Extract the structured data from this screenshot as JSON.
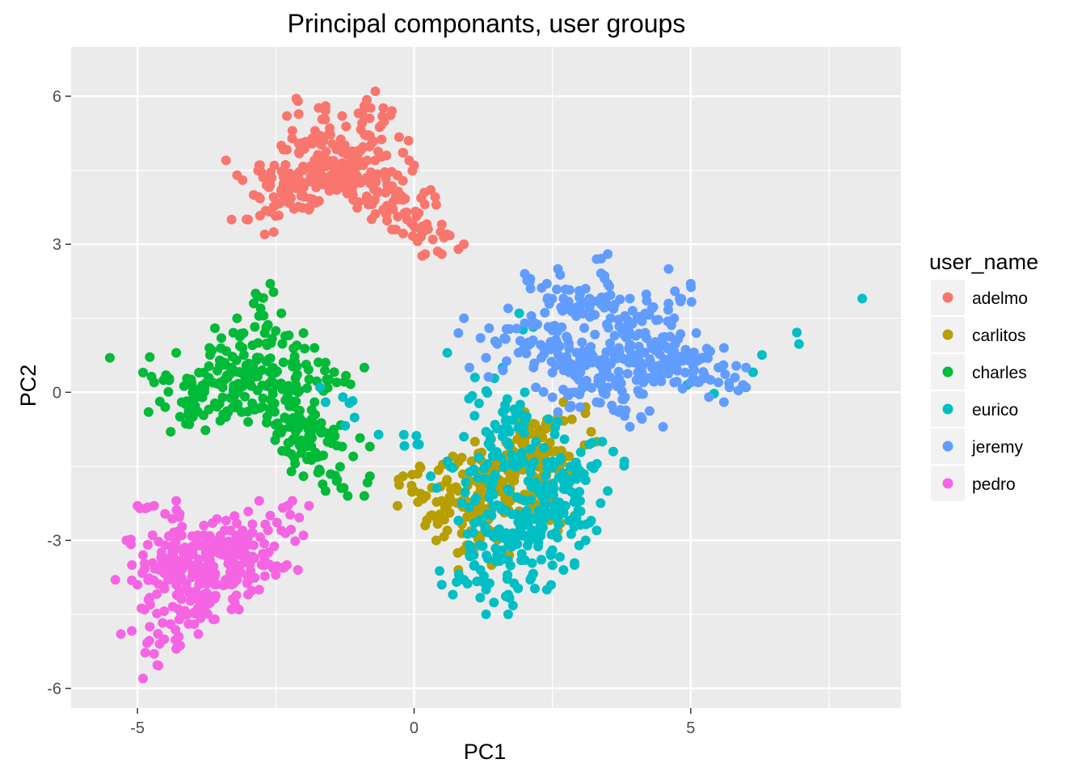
{
  "chart_data": {
    "type": "scatter",
    "title": "Principal componants, user groups",
    "xlabel": "PC1",
    "ylabel": "PC2",
    "xlim": [
      -6.2,
      8.8
    ],
    "ylim": [
      -6.4,
      7.0
    ],
    "x_ticks": [
      -5,
      0,
      5
    ],
    "x_tick_labels": [
      "-5",
      "0",
      "5"
    ],
    "y_ticks": [
      -6,
      -3,
      0,
      3,
      6
    ],
    "y_tick_labels": [
      "-6",
      "-3",
      "0",
      "3",
      "6"
    ],
    "grid": true,
    "legend": {
      "title": "user_name",
      "placement": "right"
    },
    "series": [
      {
        "name": "adelmo",
        "color": "#F8766D",
        "points": [
          [
            -1.2,
            4.6
          ],
          [
            -1.0,
            4.9
          ],
          [
            -0.8,
            5.2
          ],
          [
            -1.5,
            4.4
          ],
          [
            -0.6,
            5.4
          ],
          [
            -1.8,
            4.7
          ],
          [
            -2.0,
            4.5
          ],
          [
            -0.9,
            5.8
          ],
          [
            -0.7,
            6.1
          ],
          [
            -1.3,
            5.6
          ],
          [
            -2.2,
            5.3
          ],
          [
            -2.4,
            5.0
          ],
          [
            -2.6,
            4.2
          ],
          [
            -3.4,
            4.7
          ],
          [
            -3.2,
            4.4
          ],
          [
            -2.9,
            4.0
          ],
          [
            -2.5,
            3.8
          ],
          [
            -0.3,
            4.4
          ],
          [
            0.0,
            4.6
          ],
          [
            -0.2,
            3.9
          ],
          [
            -0.5,
            3.6
          ],
          [
            0.3,
            4.1
          ],
          [
            0.4,
            3.8
          ],
          [
            0.5,
            3.4
          ],
          [
            0.6,
            3.2
          ],
          [
            0.8,
            2.9
          ],
          [
            0.5,
            2.8
          ],
          [
            0.2,
            2.8
          ],
          [
            -1.6,
            5.8
          ],
          [
            -2.1,
            5.9
          ],
          [
            -2.3,
            5.6
          ],
          [
            -3.0,
            3.5
          ],
          [
            -3.3,
            3.5
          ],
          [
            -2.7,
            3.2
          ],
          [
            -1.9,
            3.7
          ],
          [
            -0.4,
            3.3
          ],
          [
            0.9,
            3.0
          ],
          [
            -1.1,
            3.9
          ],
          [
            -0.1,
            5.1
          ],
          [
            -1.4,
            4.1
          ],
          [
            -2.8,
            4.6
          ],
          [
            -1.7,
            5.2
          ],
          [
            -0.5,
            4.8
          ],
          [
            -2.4,
            4.1
          ],
          [
            -0.9,
            4.3
          ],
          [
            -0.4,
            5.7
          ],
          [
            -3.1,
            4.3
          ]
        ]
      },
      {
        "name": "carlitos",
        "color": "#B79F00",
        "points": [
          [
            0.3,
            -2.5
          ],
          [
            0.5,
            -2.2
          ],
          [
            0.8,
            -2.0
          ],
          [
            1.0,
            -2.4
          ],
          [
            1.3,
            -1.8
          ],
          [
            1.5,
            -1.5
          ],
          [
            1.8,
            -1.2
          ],
          [
            2.0,
            -1.0
          ],
          [
            2.3,
            -0.8
          ],
          [
            2.6,
            -0.5
          ],
          [
            2.8,
            -1.3
          ],
          [
            3.0,
            -1.6
          ],
          [
            3.2,
            -0.8
          ],
          [
            2.5,
            -1.9
          ],
          [
            2.2,
            -2.3
          ],
          [
            1.9,
            -2.6
          ],
          [
            1.6,
            -2.0
          ],
          [
            1.2,
            -2.9
          ],
          [
            0.9,
            -3.2
          ],
          [
            0.6,
            -2.8
          ],
          [
            0.4,
            -3.0
          ],
          [
            -0.3,
            -2.3
          ],
          [
            -0.2,
            -1.7
          ],
          [
            0.0,
            -2.0
          ],
          [
            0.1,
            -1.5
          ],
          [
            0.7,
            -1.3
          ],
          [
            1.1,
            -1.0
          ],
          [
            2.7,
            -0.2
          ],
          [
            3.1,
            -0.3
          ],
          [
            2.0,
            -0.4
          ],
          [
            2.6,
            -2.8
          ],
          [
            2.9,
            -2.5
          ],
          [
            3.3,
            -1.0
          ],
          [
            1.4,
            -3.5
          ],
          [
            0.8,
            -3.6
          ],
          [
            0.2,
            -2.7
          ],
          [
            1.7,
            -1.6
          ],
          [
            2.4,
            -1.1
          ]
        ]
      },
      {
        "name": "charles",
        "color": "#00BA38",
        "points": [
          [
            -3.3,
            0.5
          ],
          [
            -3.0,
            0.3
          ],
          [
            -2.8,
            0.7
          ],
          [
            -3.5,
            0.2
          ],
          [
            -3.1,
            0.9
          ],
          [
            -2.5,
            0.4
          ],
          [
            -2.2,
            0.6
          ],
          [
            -3.8,
            0.4
          ],
          [
            -4.0,
            0.1
          ],
          [
            -4.2,
            -0.2
          ],
          [
            -4.3,
            0.8
          ],
          [
            -3.6,
            1.3
          ],
          [
            -3.2,
            1.5
          ],
          [
            -2.7,
            1.2
          ],
          [
            -2.4,
            1.6
          ],
          [
            -2.0,
            1.2
          ],
          [
            -1.8,
            0.9
          ],
          [
            -1.6,
            0.6
          ],
          [
            -1.4,
            0.2
          ],
          [
            -1.8,
            -0.2
          ],
          [
            -2.6,
            -0.4
          ],
          [
            -3.0,
            -0.6
          ],
          [
            -3.4,
            -0.5
          ],
          [
            -4.0,
            -0.5
          ],
          [
            -4.5,
            -0.3
          ],
          [
            -4.7,
            0.2
          ],
          [
            -4.9,
            0.4
          ],
          [
            -5.5,
            0.7
          ],
          [
            -4.8,
            -0.4
          ],
          [
            -4.4,
            -0.8
          ],
          [
            -2.6,
            2.2
          ],
          [
            -2.9,
            1.8
          ],
          [
            -1.5,
            -0.9
          ],
          [
            -1.3,
            -1.1
          ],
          [
            -1.1,
            -1.3
          ],
          [
            -1.9,
            -1.3
          ],
          [
            -2.0,
            -1.7
          ],
          [
            -1.6,
            -2.0
          ],
          [
            -1.2,
            -2.1
          ],
          [
            -0.9,
            -2.1
          ],
          [
            -0.8,
            -1.7
          ],
          [
            -0.8,
            -1.1
          ],
          [
            -0.9,
            0.5
          ],
          [
            -2.3,
            -1.2
          ],
          [
            -1.7,
            -1.6
          ],
          [
            -1.4,
            -1.8
          ],
          [
            -3.7,
            0.9
          ],
          [
            -2.1,
            0.0
          ]
        ]
      },
      {
        "name": "eurico",
        "color": "#00BFC4",
        "points": [
          [
            1.5,
            -3.3
          ],
          [
            1.2,
            -3.6
          ],
          [
            1.8,
            -3.0
          ],
          [
            2.0,
            -3.4
          ],
          [
            2.3,
            -2.8
          ],
          [
            1.0,
            -3.1
          ],
          [
            0.9,
            -3.8
          ],
          [
            1.3,
            -4.0
          ],
          [
            1.7,
            -4.1
          ],
          [
            2.1,
            -3.8
          ],
          [
            2.5,
            -3.2
          ],
          [
            2.8,
            -2.6
          ],
          [
            3.0,
            -2.2
          ],
          [
            3.2,
            -2.6
          ],
          [
            3.5,
            -2.0
          ],
          [
            3.8,
            -1.4
          ],
          [
            3.6,
            -1.2
          ],
          [
            3.2,
            -1.5
          ],
          [
            2.8,
            -1.8
          ],
          [
            2.5,
            -1.4
          ],
          [
            2.2,
            -1.0
          ],
          [
            1.9,
            -0.7
          ],
          [
            1.6,
            -0.4
          ],
          [
            1.3,
            -0.8
          ],
          [
            0.9,
            -0.9
          ],
          [
            0.6,
            -1.4
          ],
          [
            0.3,
            -1.7
          ],
          [
            0.5,
            -3.9
          ],
          [
            0.7,
            -4.1
          ],
          [
            1.3,
            -4.5
          ],
          [
            1.7,
            -4.5
          ],
          [
            2.4,
            -4.0
          ],
          [
            2.7,
            -3.6
          ],
          [
            2.9,
            -3.5
          ],
          [
            3.1,
            -3.0
          ],
          [
            3.3,
            -2.8
          ],
          [
            0.6,
            0.8
          ],
          [
            1.1,
            0.3
          ],
          [
            1.6,
            0.5
          ],
          [
            2.0,
            0.0
          ],
          [
            2.6,
            -0.6
          ],
          [
            3.4,
            -1.0
          ],
          [
            -1.7,
            0.1
          ],
          [
            -1.6,
            -0.2
          ],
          [
            8.1,
            1.9
          ],
          [
            1.9,
            1.6
          ],
          [
            1.4,
            -2.5
          ],
          [
            1.1,
            -2.2
          ],
          [
            2.3,
            -2.1
          ],
          [
            0.8,
            -2.6
          ]
        ]
      },
      {
        "name": "jeremy",
        "color": "#619CFF",
        "points": [
          [
            4.0,
            0.7
          ],
          [
            3.7,
            0.9
          ],
          [
            4.3,
            0.5
          ],
          [
            4.6,
            0.9
          ],
          [
            3.4,
            0.5
          ],
          [
            3.1,
            0.8
          ],
          [
            2.8,
            0.6
          ],
          [
            2.5,
            0.4
          ],
          [
            2.3,
            0.7
          ],
          [
            2.1,
            1.0
          ],
          [
            4.9,
            0.4
          ],
          [
            5.2,
            0.7
          ],
          [
            5.5,
            0.5
          ],
          [
            5.8,
            0.3
          ],
          [
            6.0,
            0.5
          ],
          [
            5.6,
            0.9
          ],
          [
            5.1,
            1.2
          ],
          [
            4.7,
            1.5
          ],
          [
            4.3,
            1.7
          ],
          [
            3.9,
            1.9
          ],
          [
            3.5,
            2.2
          ],
          [
            3.1,
            2.1
          ],
          [
            2.7,
            1.9
          ],
          [
            2.4,
            2.2
          ],
          [
            2.6,
            2.5
          ],
          [
            3.5,
            2.8
          ],
          [
            3.3,
            2.7
          ],
          [
            4.6,
            2.5
          ],
          [
            5.0,
            2.2
          ],
          [
            4.8,
            1.9
          ],
          [
            1.7,
            1.7
          ],
          [
            2.0,
            1.4
          ],
          [
            2.2,
            0.1
          ],
          [
            2.5,
            -0.1
          ],
          [
            2.9,
            0.0
          ],
          [
            3.3,
            -0.2
          ],
          [
            3.7,
            -0.4
          ],
          [
            4.1,
            -0.5
          ],
          [
            4.5,
            -0.7
          ],
          [
            3.9,
            -0.7
          ],
          [
            3.0,
            -0.3
          ],
          [
            2.6,
            -0.4
          ],
          [
            5.7,
            0.1
          ],
          [
            6.0,
            0.1
          ],
          [
            5.5,
            0.2
          ],
          [
            5.0,
            0.2
          ],
          [
            0.9,
            1.5
          ],
          [
            1.2,
            1.1
          ],
          [
            1.3,
            0.7
          ],
          [
            0.8,
            1.2
          ],
          [
            1.0,
            0.5
          ],
          [
            2.1,
            2.3
          ],
          [
            2.0,
            2.4
          ],
          [
            5.6,
            -0.2
          ],
          [
            4.7,
            0.2
          ],
          [
            3.5,
            0.1
          ],
          [
            4.2,
            1.1
          ]
        ]
      },
      {
        "name": "pedro",
        "color": "#F564E3",
        "points": [
          [
            -4.0,
            -3.7
          ],
          [
            -3.7,
            -3.4
          ],
          [
            -4.3,
            -3.9
          ],
          [
            -4.6,
            -3.6
          ],
          [
            -3.5,
            -3.2
          ],
          [
            -3.9,
            -4.2
          ],
          [
            -4.1,
            -4.5
          ],
          [
            -4.4,
            -4.7
          ],
          [
            -4.8,
            -4.2
          ],
          [
            -5.0,
            -3.9
          ],
          [
            -5.1,
            -3.5
          ],
          [
            -4.9,
            -3.3
          ],
          [
            -4.5,
            -3.1
          ],
          [
            -4.2,
            -2.9
          ],
          [
            -3.8,
            -2.7
          ],
          [
            -3.4,
            -2.6
          ],
          [
            -3.1,
            -2.8
          ],
          [
            -2.9,
            -3.1
          ],
          [
            -2.7,
            -3.4
          ],
          [
            -2.5,
            -3.7
          ],
          [
            -2.3,
            -3.5
          ],
          [
            -2.1,
            -3.6
          ],
          [
            -2.4,
            -2.8
          ],
          [
            -2.6,
            -2.5
          ],
          [
            -2.8,
            -2.2
          ],
          [
            -2.2,
            -2.2
          ],
          [
            -1.9,
            -2.3
          ],
          [
            -2.0,
            -2.9
          ],
          [
            -5.0,
            -2.3
          ],
          [
            -4.7,
            -2.3
          ],
          [
            -4.3,
            -2.2
          ],
          [
            -5.3,
            -4.9
          ],
          [
            -4.7,
            -5.3
          ],
          [
            -4.9,
            -5.8
          ],
          [
            -4.6,
            -5.1
          ],
          [
            -4.3,
            -5.2
          ],
          [
            -3.9,
            -4.9
          ],
          [
            -3.6,
            -4.6
          ],
          [
            -3.3,
            -4.4
          ],
          [
            -3.0,
            -4.1
          ],
          [
            -2.8,
            -4.0
          ],
          [
            -3.2,
            -3.8
          ],
          [
            -3.6,
            -3.9
          ],
          [
            -5.2,
            -3.0
          ],
          [
            -5.4,
            -3.8
          ],
          [
            -4.4,
            -3.4
          ],
          [
            -3.7,
            -3.0
          ]
        ]
      }
    ]
  }
}
